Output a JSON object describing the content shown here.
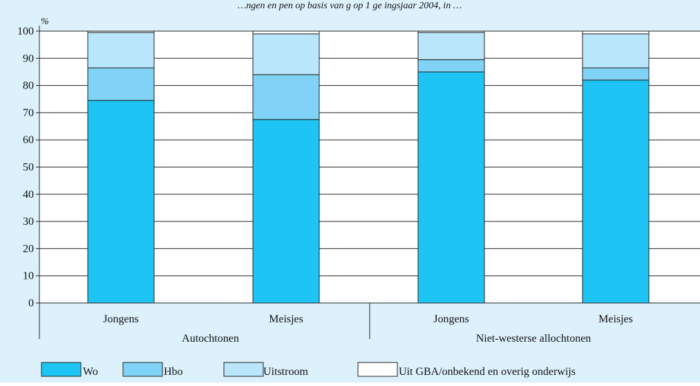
{
  "chart_data": {
    "type": "bar",
    "stacked": true,
    "title": "…ngen en     pen op basis van     g op 1 ge ingsjaar 2004, in …",
    "ylabel": "%",
    "ylim": [
      0,
      100
    ],
    "yticks": [
      0,
      10,
      20,
      30,
      40,
      50,
      60,
      70,
      80,
      90,
      100
    ],
    "grid": true,
    "legend_position": "bottom",
    "groups": [
      {
        "name": "Autochtonen",
        "categories": [
          "Jongens",
          "Meisjes"
        ]
      },
      {
        "name": "Niet-westerse allochtonen",
        "categories": [
          "Jongens",
          "Meisjes"
        ]
      }
    ],
    "categories": [
      "Jongens",
      "Meisjes",
      "Jongens",
      "Meisjes"
    ],
    "series": [
      {
        "name": "Wo",
        "color": "#1ec4f4",
        "values": [
          74.5,
          67.5,
          85,
          82
        ]
      },
      {
        "name": "Hbo",
        "color": "#80d3f6",
        "values": [
          12,
          16.5,
          4.5,
          4.5
        ]
      },
      {
        "name": "Uitstroom",
        "color": "#b9e6fa",
        "values": [
          13,
          15,
          10,
          12.5
        ]
      },
      {
        "name": "Uit GBA/onbekend en overig onderwijs",
        "color": "#ffffff",
        "values": [
          0.5,
          1,
          0.5,
          1
        ]
      }
    ],
    "colors": {
      "background": "#dcf1fb",
      "plot_area": "#ffffff",
      "axis": "#222222"
    }
  }
}
